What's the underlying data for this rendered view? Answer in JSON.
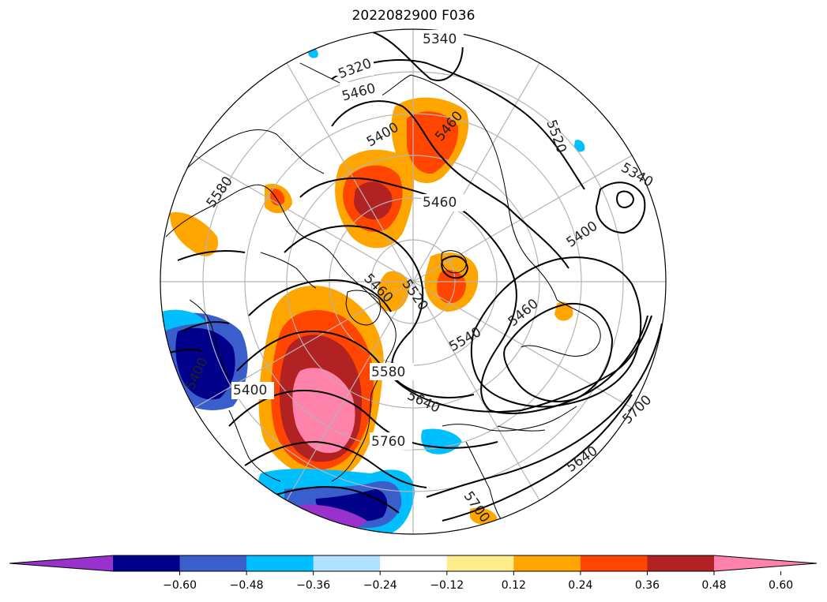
{
  "title": "2022082900 F036",
  "contour_labels": [
    "5340",
    "5320",
    "5460",
    "5400",
    "5460",
    "5520",
    "5580",
    "5460",
    "5520",
    "5460",
    "5340",
    "5400",
    "5460",
    "5540",
    "5580",
    "5400",
    "5640",
    "5760",
    "5700",
    "5640",
    "5700",
    "5400"
  ],
  "colorbar": {
    "colors": [
      "#9932cc",
      "#00008b",
      "#3a5fcd",
      "#00bfff",
      "#b0e2ff",
      "#ffffff",
      "#ffec8b",
      "#ffa500",
      "#ff4500",
      "#b22222",
      "#ff82ab"
    ],
    "ticks": [
      "−0.60",
      "−0.48",
      "−0.36",
      "−0.24",
      "−0.12",
      "0.12",
      "0.24",
      "0.36",
      "0.48",
      "0.60"
    ]
  },
  "colors": {
    "contour": "#000000",
    "grid": "#b4b4b4",
    "coast": "#000000"
  }
}
